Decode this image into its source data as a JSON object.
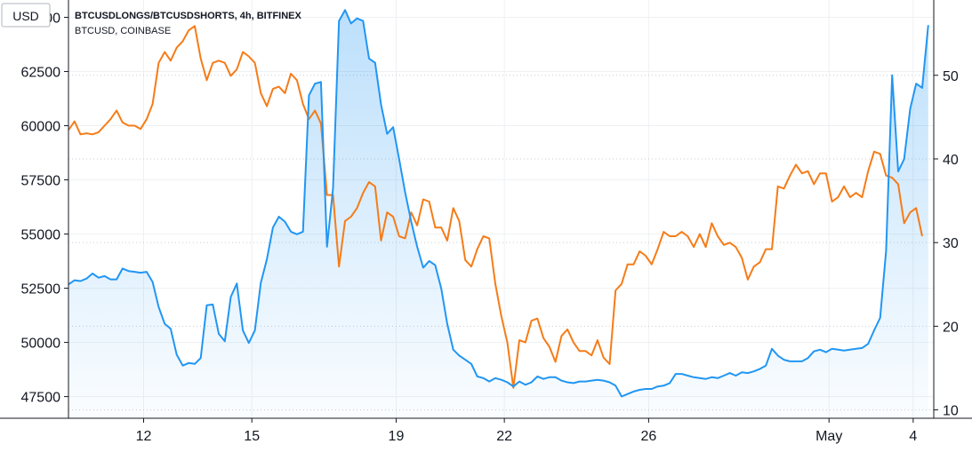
{
  "chart_data": {
    "type": "line",
    "currency": "USD",
    "legend": [
      {
        "label": "BTCUSDLONGS/BTCUSDSHORTS, 4h, BITFINEX",
        "color": "#2196f3"
      },
      {
        "label": "BTCUSD, COINBASE",
        "color": "#f57c18"
      }
    ],
    "left_axis": {
      "ticks": [
        "65000",
        "62500",
        "60000",
        "57500",
        "55000",
        "52500",
        "50000",
        "47500"
      ],
      "range": [
        46500,
        65800
      ]
    },
    "right_axis": {
      "ticks": [
        "50",
        "40",
        "30",
        "20",
        "10"
      ],
      "range": [
        9,
        59
      ]
    },
    "x_axis": {
      "labels": [
        "12",
        "15",
        "19",
        "22",
        "26",
        "May",
        "4"
      ]
    },
    "series": [
      {
        "axis": "left",
        "color": "#f57c18",
        "values": [
          59800,
          60200,
          59600,
          59650,
          59600,
          59700,
          60000,
          60300,
          60700,
          60150,
          60000,
          60000,
          59850,
          60300,
          61000,
          62900,
          63400,
          63000,
          63600,
          63900,
          64400,
          64600,
          63100,
          62100,
          62900,
          63000,
          62900,
          62300,
          62600,
          63400,
          63200,
          62900,
          61500,
          60900,
          61700,
          61800,
          61500,
          62400,
          62100,
          61000,
          60300,
          60700,
          60100,
          56800,
          56800,
          53500,
          55600,
          55800,
          56200,
          56900,
          57400,
          57200,
          54700,
          56000,
          55800,
          54900,
          54800,
          56000,
          55400,
          56600,
          56500,
          55300,
          55300,
          54700,
          56200,
          55600,
          53800,
          53500,
          54300,
          54900,
          54800,
          52700,
          51200,
          50000,
          47900,
          50100,
          50000,
          51000,
          51100,
          50200,
          49800,
          49100,
          50300,
          50600,
          50000,
          49600,
          49600,
          49400,
          50100,
          49300,
          49000,
          52400,
          52700,
          53600,
          53600,
          54200,
          54000,
          53600,
          54300,
          55100,
          54900,
          54900,
          55100,
          54900,
          54400,
          55000,
          54400,
          55500,
          54900,
          54500,
          54600,
          54400,
          53900,
          52900,
          53500,
          53700,
          54300,
          54300,
          57200,
          57100,
          57700,
          58200,
          57800,
          57900,
          57300,
          57800,
          57800,
          56500,
          56700,
          57200,
          56700,
          56900,
          56700,
          57900,
          58800,
          58700,
          57700,
          57600,
          57300,
          55500,
          56000,
          56200,
          54900
        ]
      },
      {
        "axis": "right",
        "color": "#2196f3",
        "values": [
          25.0,
          25.5,
          25.4,
          25.7,
          26.3,
          25.8,
          26.0,
          25.6,
          25.6,
          26.9,
          26.6,
          26.5,
          26.4,
          26.5,
          25.3,
          22.3,
          20.3,
          19.7,
          16.6,
          15.3,
          15.6,
          15.5,
          16.2,
          22.5,
          22.6,
          19.1,
          18.2,
          23.5,
          25.1,
          19.5,
          18.0,
          19.5,
          25.2,
          28.0,
          31.8,
          33.1,
          32.5,
          31.3,
          31.0,
          31.3,
          47.6,
          49.0,
          49.2,
          29.5,
          36.5,
          56.5,
          57.8,
          56.2,
          56.8,
          56.5,
          52.0,
          51.5,
          46.5,
          43.0,
          43.8,
          40.0,
          36.0,
          32.5,
          29.5,
          27.0,
          27.8,
          27.3,
          24.5,
          20.3,
          17.2,
          16.5,
          16.0,
          15.5,
          14.0,
          13.8,
          13.4,
          13.8,
          13.6,
          13.3,
          12.8,
          13.4,
          13.0,
          13.3,
          14.0,
          13.7,
          13.9,
          13.9,
          13.5,
          13.3,
          13.2,
          13.4,
          13.4,
          13.5,
          13.6,
          13.5,
          13.3,
          12.9,
          11.6,
          11.9,
          12.2,
          12.4,
          12.5,
          12.5,
          12.8,
          12.9,
          13.2,
          14.3,
          14.3,
          14.1,
          13.9,
          13.8,
          13.7,
          13.9,
          13.8,
          14.1,
          14.4,
          14.1,
          14.5,
          14.4,
          14.6,
          14.9,
          15.3,
          17.3,
          16.5,
          16.0,
          15.8,
          15.8,
          15.8,
          16.2,
          17.0,
          17.2,
          16.9,
          17.3,
          17.2,
          17.1,
          17.2,
          17.3,
          17.4,
          17.9,
          19.5,
          21.0,
          29.0,
          50.0,
          38.5,
          40.0,
          46.0,
          49.0,
          48.5,
          56.0
        ]
      }
    ],
    "grid": true,
    "legend_position": "top-left"
  }
}
